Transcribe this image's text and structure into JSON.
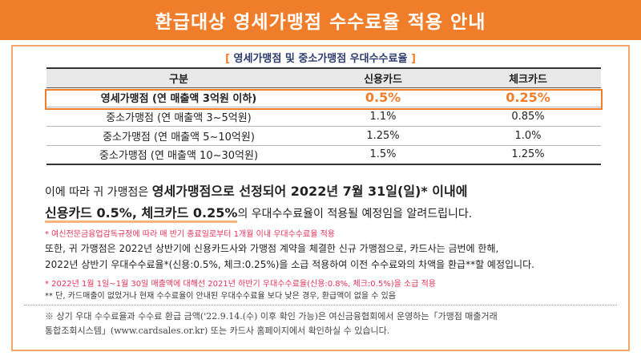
{
  "banner": {
    "title": "환급대상 영세가맹점 수수료율 적용 안내"
  },
  "table": {
    "subtitle_open": "[",
    "subtitle": " 영세가맹점 및 중소가맹점 우대수수료율 ",
    "subtitle_close": "]",
    "headers": [
      "구분",
      "신용카드",
      "체크카드"
    ],
    "highlight_row": {
      "label": "영세가맹점 (연 매출액 3억원 이하)",
      "credit": "0.5%",
      "check": "0.25%"
    },
    "rows": [
      {
        "label": "중소가맹점 (연 매출액 3~5억원)",
        "credit": "1.1%",
        "check": "0.85%"
      },
      {
        "label": "중소가맹점 (연 매출액 5~10억원)",
        "credit": "1.25%",
        "check": "1.0%"
      },
      {
        "label": "중소가맹점 (연 매출액 10~30억원)",
        "credit": "1.5%",
        "check": "1.25%"
      }
    ]
  },
  "para1": {
    "prefix": "이에 따라 귀 가맹점은 ",
    "bold1": "영세가맹점으로 선정되어 2022년 7월 31일(일)* 이내에",
    "underline": "신용카드 0.5%, 체크카드 0.25%",
    "suffix": "의 우대수수료율이 적용될 예정임을 알려드립니다."
  },
  "note1": "* 여신전문금융업감독규정에 따라 매 반기 종료일로부터 1개월 이내 우대수수료율 적용",
  "para2": {
    "line1": "또한, 귀 가맹점은 2022년 상반기에 신용카드사와 가맹점 계약을 체결한 신규 가맹점으로, 카드사는 금번에 한해,",
    "line2": "2022년 상반기 우대수수료율*(신용:0.5%, 체크:0.25%)을 소급 적용하여 이전 수수료와의 차액을 환급**할 예정입니다."
  },
  "note2": "* 2022년 1월 1일~1월 30일 매출액에 대해선 2021년 하반기 우대수수료율(신용:0.8%, 체크:0.5%)을 소급 적용",
  "note3": "** 단, 카드매출이 없었거나 현재 수수료율이 안내된 우대수수료율 보다 낮은 경우, 환급액이 없을 수 있음",
  "footer": {
    "line1": "※ 상기 우대 수수료율과 수수료 환급 금액('22.9.14.(수) 이후 확인 가능)은 여신금융협회에서 운영하는「가맹점 매출거래",
    "line2": "통합조회시스템」(www.cardsales.or.kr) 또는 카드사 홈페이지에서 확인하실 수 있습니다."
  },
  "colors": {
    "accent": "#f07d2a",
    "note_red": "#e0325a",
    "subtitle_navy": "#2b3a6b"
  }
}
